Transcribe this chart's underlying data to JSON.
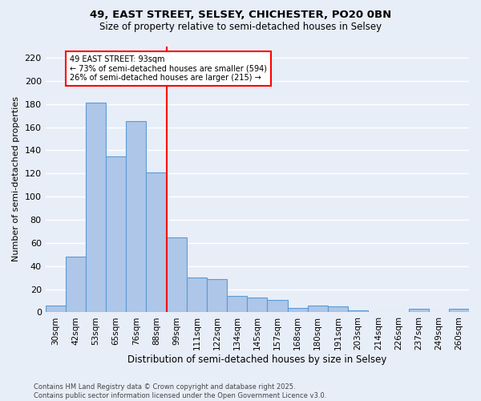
{
  "title1": "49, EAST STREET, SELSEY, CHICHESTER, PO20 0BN",
  "title2": "Size of property relative to semi-detached houses in Selsey",
  "xlabel": "Distribution of semi-detached houses by size in Selsey",
  "ylabel": "Number of semi-detached properties",
  "categories": [
    "30sqm",
    "42sqm",
    "53sqm",
    "65sqm",
    "76sqm",
    "88sqm",
    "99sqm",
    "111sqm",
    "122sqm",
    "134sqm",
    "145sqm",
    "157sqm",
    "168sqm",
    "180sqm",
    "191sqm",
    "203sqm",
    "214sqm",
    "226sqm",
    "237sqm",
    "249sqm",
    "260sqm"
  ],
  "values": [
    6,
    48,
    181,
    135,
    165,
    121,
    65,
    30,
    29,
    14,
    13,
    11,
    4,
    6,
    5,
    2,
    0,
    0,
    3,
    0,
    3
  ],
  "bar_color": "#aec6e8",
  "bar_edge_color": "#5b9bd5",
  "background_color": "#e8eef8",
  "grid_color": "#ffffff",
  "vline_x_index": 5.5,
  "vline_color": "red",
  "annotation_text": "49 EAST STREET: 93sqm\n← 73% of semi-detached houses are smaller (594)\n26% of semi-detached houses are larger (215) →",
  "annotation_box_color": "white",
  "annotation_box_edge_color": "red",
  "ylim": [
    0,
    230
  ],
  "yticks": [
    0,
    20,
    40,
    60,
    80,
    100,
    120,
    140,
    160,
    180,
    200,
    220
  ],
  "footer1": "Contains HM Land Registry data © Crown copyright and database right 2025.",
  "footer2": "Contains public sector information licensed under the Open Government Licence v3.0."
}
